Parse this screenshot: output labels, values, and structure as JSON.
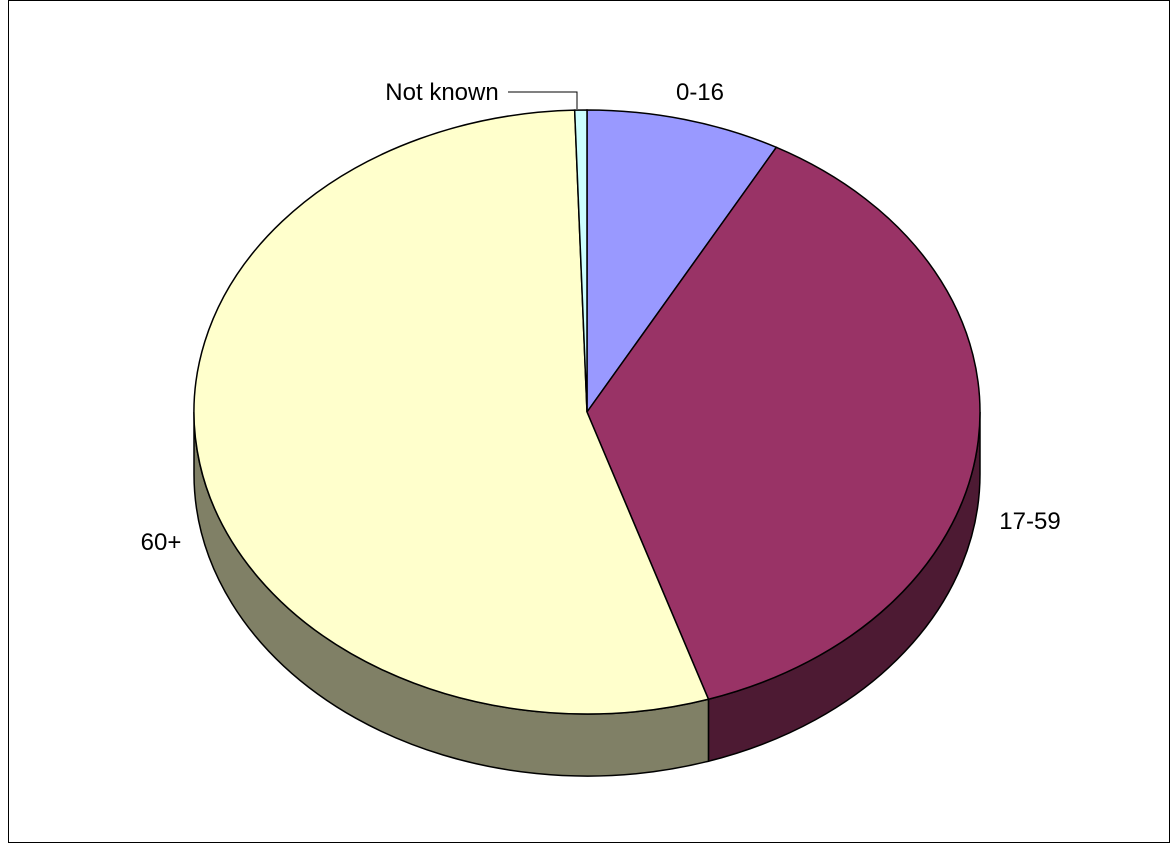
{
  "chart_data": {
    "type": "pie",
    "style": "3d",
    "slices": [
      {
        "label": "0-16",
        "value": 8,
        "color": "#9999FF",
        "side_color": "#5C5C99"
      },
      {
        "label": "17-59",
        "value": 37,
        "color": "#993366",
        "side_color": "#4D1A33"
      },
      {
        "label": "60+",
        "value": 54.5,
        "color": "#FFFFCC",
        "side_color": "#808066"
      },
      {
        "label": "Not known",
        "value": 0.5,
        "color": "#CCFFFF",
        "side_color": "#668080"
      }
    ],
    "outline_color": "#000000"
  }
}
